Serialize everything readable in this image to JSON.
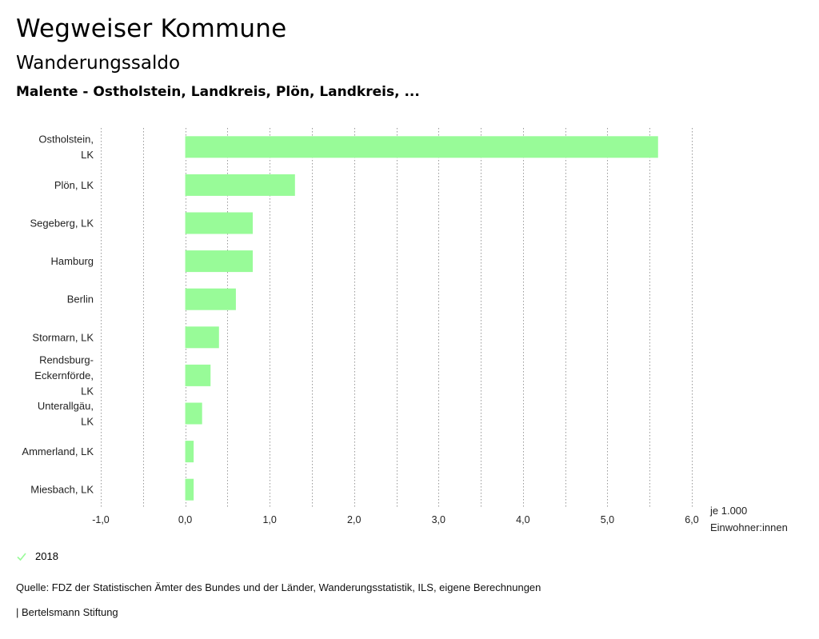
{
  "header": {
    "title": "Wegweiser Kommune",
    "subtitle": "Wanderungssaldo",
    "region": "Malente - Ostholstein, Landkreis, Plön, Landkreis, ..."
  },
  "chart_data": {
    "type": "bar",
    "orientation": "horizontal",
    "categories": [
      "Ostholstein, LK",
      "Plön, LK",
      "Segeberg, LK",
      "Hamburg",
      "Berlin",
      "Stormarn, LK",
      "Rendsburg-Eckernförde, LK",
      "Unterallgäu, LK",
      "Ammerland, LK",
      "Miesbach, LK"
    ],
    "category_label_lines": [
      [
        "Ostholstein,",
        "LK"
      ],
      [
        "Plön, LK"
      ],
      [
        "Segeberg, LK"
      ],
      [
        "Hamburg"
      ],
      [
        "Berlin"
      ],
      [
        "Stormarn, LK"
      ],
      [
        "Rendsburg-",
        "Eckernförde,",
        "LK"
      ],
      [
        "Unterallgäu,",
        "LK"
      ],
      [
        "Ammerland, LK"
      ],
      [
        "Miesbach, LK"
      ]
    ],
    "series": [
      {
        "name": "2018",
        "color": "#98fb98",
        "values": [
          5.6,
          1.3,
          0.8,
          0.8,
          0.6,
          0.4,
          0.3,
          0.2,
          0.1,
          0.1
        ]
      }
    ],
    "xlim": [
      -1.0,
      6.0
    ],
    "xticks": [
      -1.0,
      0.0,
      1.0,
      2.0,
      3.0,
      4.0,
      5.0,
      6.0
    ],
    "xtick_labels": [
      "-1,0",
      "0,0",
      "1,0",
      "2,0",
      "3,0",
      "4,0",
      "5,0",
      "6,0"
    ],
    "xlabel": [
      "je 1.000",
      "Einwohner:innen"
    ],
    "grid": true
  },
  "legend": {
    "label": "2018",
    "color": "#98fb98"
  },
  "footer": {
    "source": "Quelle: FDZ der Statistischen Ämter des Bundes und der Länder, Wanderungsstatistik, ILS, eigene Berechnungen",
    "brand": "| Bertelsmann Stiftung"
  }
}
